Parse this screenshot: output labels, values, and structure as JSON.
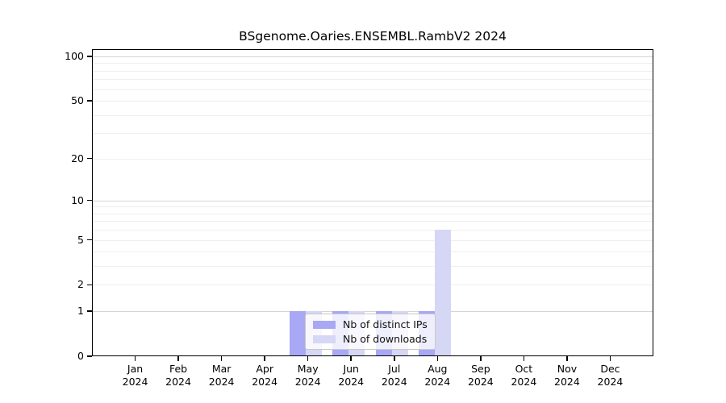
{
  "chart_data": {
    "type": "bar",
    "title": "BSgenome.Oaries.ENSEMBL.RambV2 2024",
    "xlabel": "",
    "ylabel": "",
    "categories": [
      "Jan",
      "Feb",
      "Mar",
      "Apr",
      "May",
      "Jun",
      "Jul",
      "Aug",
      "Sep",
      "Oct",
      "Nov",
      "Dec"
    ],
    "year_label": "2024",
    "series": [
      {
        "name": "Nb of distinct IPs",
        "color": "#a8a8f5",
        "values": [
          0,
          0,
          0,
          0,
          1,
          1,
          1,
          1,
          0,
          0,
          0,
          0
        ]
      },
      {
        "name": "Nb of downloads",
        "color": "#d6d6f5",
        "values": [
          0,
          0,
          0,
          0,
          1,
          1,
          1,
          6,
          0,
          0,
          0,
          0
        ]
      }
    ],
    "y_axis": {
      "scale": "log1p",
      "ticks": [
        0,
        1,
        2,
        5,
        10,
        20,
        50,
        100
      ],
      "max": 113,
      "gridlines": {
        "major": [
          1,
          10,
          100
        ],
        "minor": [
          2,
          3,
          4,
          5,
          6,
          7,
          8,
          9,
          20,
          30,
          40,
          50,
          60,
          70,
          80,
          90
        ]
      }
    },
    "legend": {
      "position": "lower-center",
      "entries": [
        "Nb of distinct IPs",
        "Nb of downloads"
      ]
    }
  },
  "colors": {
    "background": "#ffffff",
    "spine": "#000000",
    "text": "#000000",
    "grid_major": "#d4d4d4",
    "grid_minor": "#efefef",
    "legend_border": "#c8c8c8"
  }
}
